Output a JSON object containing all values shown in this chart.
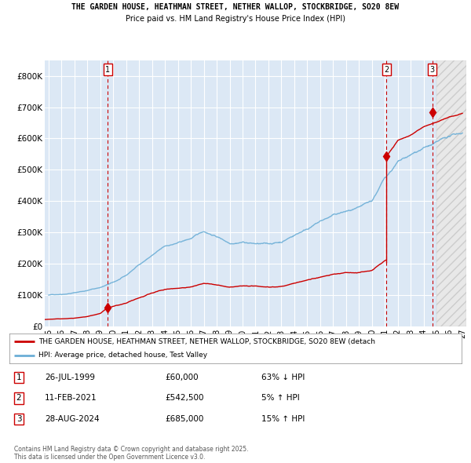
{
  "title_line1": "THE GARDEN HOUSE, HEATHMAN STREET, NETHER WALLOP, STOCKBRIDGE, SO20 8EW",
  "title_line2": "Price paid vs. HM Land Registry's House Price Index (HPI)",
  "background_color": "#ffffff",
  "plot_bg_color": "#dce8f5",
  "grid_color": "#ffffff",
  "ylim": [
    0,
    850000
  ],
  "yticks": [
    0,
    100000,
    200000,
    300000,
    400000,
    500000,
    600000,
    700000,
    800000
  ],
  "ytick_labels": [
    "£0",
    "£100K",
    "£200K",
    "£300K",
    "£400K",
    "£500K",
    "£600K",
    "£700K",
    "£800K"
  ],
  "xlim_start": 1994.7,
  "xlim_end": 2027.3,
  "hpi_color": "#6baed6",
  "price_color": "#cc0000",
  "transaction_color": "#cc0000",
  "transactions": [
    {
      "date_num": 1999.57,
      "price": 60000,
      "label": "1"
    },
    {
      "date_num": 2021.12,
      "price": 542500,
      "label": "2"
    },
    {
      "date_num": 2024.66,
      "price": 685000,
      "label": "3"
    }
  ],
  "legend_line1": "THE GARDEN HOUSE, HEATHMAN STREET, NETHER WALLOP, STOCKBRIDGE, SO20 8EW (detach",
  "legend_line2": "HPI: Average price, detached house, Test Valley",
  "table_rows": [
    {
      "num": "1",
      "date": "26-JUL-1999",
      "price": "£60,000",
      "hpi": "63% ↓ HPI"
    },
    {
      "num": "2",
      "date": "11-FEB-2021",
      "price": "£542,500",
      "hpi": "5% ↑ HPI"
    },
    {
      "num": "3",
      "date": "28-AUG-2024",
      "price": "£685,000",
      "hpi": "15% ↑ HPI"
    }
  ],
  "footnote": "Contains HM Land Registry data © Crown copyright and database right 2025.\nThis data is licensed under the Open Government Licence v3.0.",
  "hatch_start": 2025.0
}
